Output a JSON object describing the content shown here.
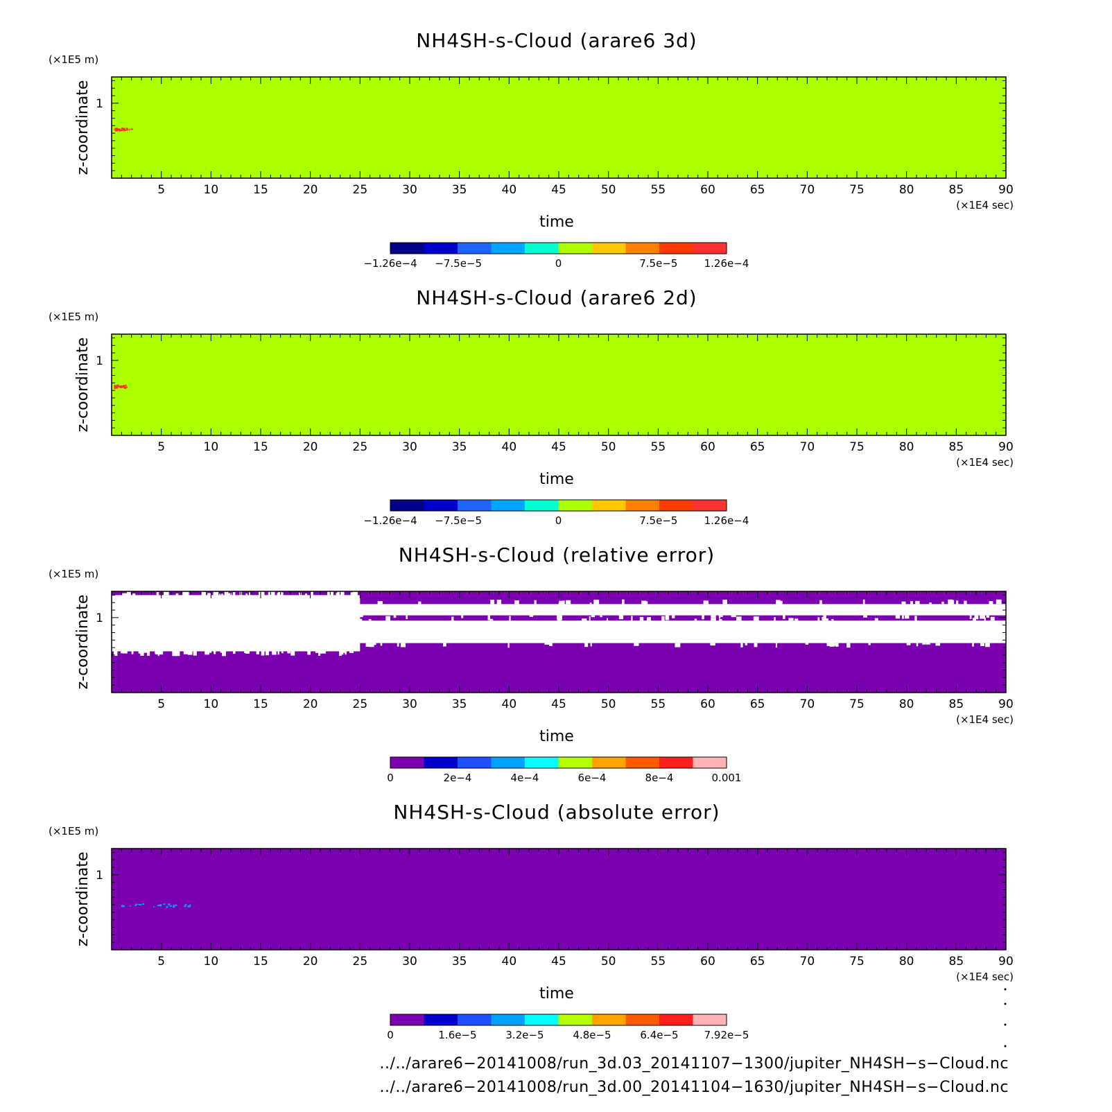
{
  "chart_data": [
    {
      "type": "heatmap",
      "title": "NH4SH-s-Cloud (arare6 3d)",
      "xlabel": "time",
      "x_unit": "(×1E4 sec)",
      "ylabel": "z-coordinate",
      "y_unit": "(×1E5 m)",
      "xlim": [
        0,
        90
      ],
      "x_ticks": [
        5,
        10,
        15,
        20,
        25,
        30,
        35,
        40,
        45,
        50,
        55,
        60,
        65,
        70,
        75,
        80,
        85,
        90
      ],
      "ylim": [
        0,
        1.35
      ],
      "y_ticks": [
        1
      ],
      "background_value": 0,
      "features": [
        {
          "kind": "speckle",
          "x_range": [
            0.2,
            2.0
          ],
          "y": 0.66,
          "value": 0.00011
        }
      ],
      "colorbar": {
        "colors": [
          "#00008b",
          "#0000cd",
          "#1e63ff",
          "#00a5ff",
          "#00ffd0",
          "#aaff00",
          "#ffc800",
          "#ff8000",
          "#ff3c00",
          "#ff3232"
        ],
        "labels": [
          {
            "pos": 0.0,
            "text": "−1.26e−4"
          },
          {
            "pos": 0.2024,
            "text": "−7.5e−5"
          },
          {
            "pos": 0.5,
            "text": "0"
          },
          {
            "pos": 0.7976,
            "text": "7.5e−5"
          },
          {
            "pos": 1.0,
            "text": "1.26e−4"
          }
        ]
      }
    },
    {
      "type": "heatmap",
      "title": "NH4SH-s-Cloud (arare6 2d)",
      "xlabel": "time",
      "x_unit": "(×1E4 sec)",
      "ylabel": "z-coordinate",
      "y_unit": "(×1E5 m)",
      "xlim": [
        0,
        90
      ],
      "x_ticks": [
        5,
        10,
        15,
        20,
        25,
        30,
        35,
        40,
        45,
        50,
        55,
        60,
        65,
        70,
        75,
        80,
        85,
        90
      ],
      "ylim": [
        0,
        1.35
      ],
      "y_ticks": [
        1
      ],
      "background_value": 0,
      "features": [
        {
          "kind": "speckle",
          "x_range": [
            0.2,
            2.0
          ],
          "y": 0.66,
          "value": 0.00011
        }
      ],
      "colorbar": {
        "colors": [
          "#00008b",
          "#0000cd",
          "#1e63ff",
          "#00a5ff",
          "#00ffd0",
          "#aaff00",
          "#ffc800",
          "#ff8000",
          "#ff3c00",
          "#ff3232"
        ],
        "labels": [
          {
            "pos": 0.0,
            "text": "−1.26e−4"
          },
          {
            "pos": 0.2024,
            "text": "−7.5e−5"
          },
          {
            "pos": 0.5,
            "text": "0"
          },
          {
            "pos": 0.7976,
            "text": "7.5e−5"
          },
          {
            "pos": 1.0,
            "text": "1.26e−4"
          }
        ]
      }
    },
    {
      "type": "heatmap",
      "title": "NH4SH-s-Cloud (relative error)",
      "xlabel": "time",
      "x_unit": "(×1E4 sec)",
      "ylabel": "z-coordinate",
      "y_unit": "(×1E5 m)",
      "xlim": [
        0,
        90
      ],
      "x_ticks": [
        5,
        10,
        15,
        20,
        25,
        30,
        35,
        40,
        45,
        50,
        55,
        60,
        65,
        70,
        75,
        80,
        85,
        90
      ],
      "ylim": [
        0,
        1.35
      ],
      "y_ticks": [
        1
      ],
      "background_value": 0,
      "features": [
        {
          "kind": "nodata_band",
          "x_range": [
            0,
            90
          ],
          "y_range": [
            0.66,
            0.96
          ]
        },
        {
          "kind": "nodata_band",
          "x_range": [
            0,
            90
          ],
          "y_range": [
            1.03,
            1.18
          ]
        },
        {
          "kind": "nodata_band",
          "x_range": [
            0,
            25
          ],
          "y_range": [
            0.55,
            1.3
          ]
        }
      ],
      "colorbar": {
        "colors": [
          "#7a00b0",
          "#0000cd",
          "#1e50ff",
          "#00a0ff",
          "#00ffff",
          "#b4ff00",
          "#ffa500",
          "#ff5a00",
          "#ff1e1e",
          "#ffb4b4"
        ],
        "labels": [
          {
            "pos": 0.0,
            "text": "0"
          },
          {
            "pos": 0.2,
            "text": "2e−4"
          },
          {
            "pos": 0.4,
            "text": "4e−4"
          },
          {
            "pos": 0.6,
            "text": "6e−4"
          },
          {
            "pos": 0.8,
            "text": "8e−4"
          },
          {
            "pos": 1.0,
            "text": "0.001"
          }
        ]
      }
    },
    {
      "type": "heatmap",
      "title": "NH4SH-s-Cloud (absolute error)",
      "xlabel": "time",
      "x_unit": "(×1E4 sec)",
      "ylabel": "z-coordinate",
      "y_unit": "(×1E5 m)",
      "xlim": [
        0,
        90
      ],
      "x_ticks": [
        5,
        10,
        15,
        20,
        25,
        30,
        35,
        40,
        45,
        50,
        55,
        60,
        65,
        70,
        75,
        80,
        85,
        90
      ],
      "ylim": [
        0,
        1.35
      ],
      "y_ticks": [
        1
      ],
      "background_value": 0,
      "features": [
        {
          "kind": "speckle",
          "x_range": [
            0.8,
            8.0
          ],
          "y": 0.6,
          "value": 2.4e-05
        }
      ],
      "colorbar": {
        "colors": [
          "#7a00b0",
          "#0000cd",
          "#1e50ff",
          "#00a0ff",
          "#00ffff",
          "#b4ff00",
          "#ffa500",
          "#ff5a00",
          "#ff1e1e",
          "#ffb4b4"
        ],
        "labels": [
          {
            "pos": 0.0,
            "text": "0"
          },
          {
            "pos": 0.2,
            "text": "1.6e−5"
          },
          {
            "pos": 0.4,
            "text": "3.2e−5"
          },
          {
            "pos": 0.6,
            "text": "4.8e−5"
          },
          {
            "pos": 0.8,
            "text": "6.4e−5"
          },
          {
            "pos": 1.0,
            "text": "7.92e−5"
          }
        ]
      }
    }
  ],
  "footer": {
    "line1": "../../arare6−20141008/run_3d.03_20141107−1300/jupiter_NH4SH−s−Cloud.nc",
    "line2": "../../arare6−20141008/run_3d.00_20141104−1630/jupiter_NH4SH−s−Cloud.nc"
  }
}
